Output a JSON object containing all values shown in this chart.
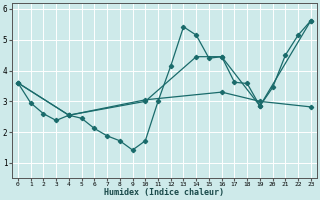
{
  "xlabel": "Humidex (Indice chaleur)",
  "bg_color": "#ceeaea",
  "grid_color": "#b8d8d8",
  "line_color": "#1a6b6b",
  "xlim": [
    -0.5,
    23.5
  ],
  "ylim": [
    0.5,
    6.2
  ],
  "xticks": [
    0,
    1,
    2,
    3,
    4,
    5,
    6,
    7,
    8,
    9,
    10,
    11,
    12,
    13,
    14,
    15,
    16,
    17,
    18,
    19,
    20,
    21,
    22,
    23
  ],
  "yticks": [
    1,
    2,
    3,
    4,
    5,
    6
  ],
  "series1": [
    [
      0,
      3.6
    ],
    [
      1,
      2.95
    ],
    [
      2,
      2.6
    ],
    [
      3,
      2.38
    ],
    [
      4,
      2.55
    ],
    [
      5,
      2.45
    ],
    [
      6,
      2.12
    ],
    [
      7,
      1.88
    ],
    [
      8,
      1.72
    ],
    [
      9,
      1.42
    ],
    [
      10,
      1.72
    ],
    [
      11,
      3.0
    ],
    [
      12,
      4.15
    ],
    [
      13,
      5.42
    ],
    [
      14,
      5.15
    ],
    [
      15,
      4.4
    ],
    [
      16,
      4.45
    ],
    [
      17,
      3.62
    ],
    [
      18,
      3.58
    ],
    [
      19,
      2.85
    ],
    [
      20,
      3.45
    ],
    [
      21,
      4.5
    ],
    [
      22,
      5.15
    ],
    [
      23,
      5.62
    ]
  ],
  "series2": [
    [
      0,
      3.6
    ],
    [
      4,
      2.55
    ],
    [
      10,
      3.0
    ],
    [
      14,
      4.45
    ],
    [
      16,
      4.45
    ],
    [
      19,
      2.85
    ],
    [
      23,
      5.62
    ]
  ],
  "series3": [
    [
      0,
      3.6
    ],
    [
      4,
      2.55
    ],
    [
      10,
      3.05
    ],
    [
      16,
      3.3
    ],
    [
      19,
      3.0
    ],
    [
      23,
      2.82
    ]
  ]
}
